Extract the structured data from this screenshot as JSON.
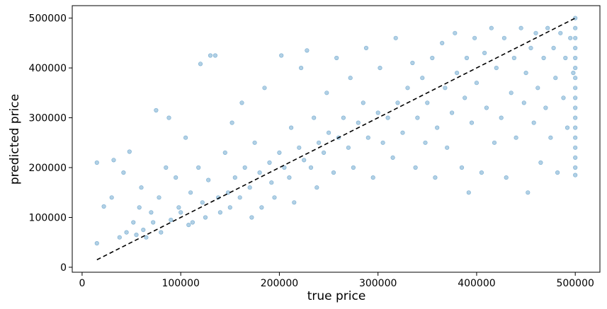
{
  "chart_data": {
    "type": "scatter",
    "title": "",
    "xlabel": "true price",
    "ylabel": "predicted price",
    "xlim": [
      -10000,
      525000
    ],
    "ylim": [
      -10000,
      525000
    ],
    "xticks": [
      0,
      100000,
      200000,
      300000,
      400000,
      500000
    ],
    "yticks": [
      0,
      100000,
      200000,
      300000,
      400000,
      500000
    ],
    "grid": false,
    "point_color": "#1f77b4",
    "point_alpha": 0.35,
    "reference_line": {
      "style": "dashed",
      "color": "#000000",
      "x": [
        15000,
        500000
      ],
      "y": [
        15000,
        500000
      ]
    },
    "series": [
      {
        "points": [
          [
            15000,
            48000
          ],
          [
            15000,
            210000
          ],
          [
            22000,
            122000
          ],
          [
            30000,
            140000
          ],
          [
            32000,
            215000
          ],
          [
            38000,
            60000
          ],
          [
            42000,
            190000
          ],
          [
            48000,
            232000
          ],
          [
            45000,
            70000
          ],
          [
            52000,
            90000
          ],
          [
            55000,
            65000
          ],
          [
            58000,
            120000
          ],
          [
            60000,
            160000
          ],
          [
            62000,
            75000
          ],
          [
            65000,
            60000
          ],
          [
            70000,
            110000
          ],
          [
            72000,
            90000
          ],
          [
            75000,
            315000
          ],
          [
            78000,
            140000
          ],
          [
            80000,
            70000
          ],
          [
            85000,
            200000
          ],
          [
            88000,
            300000
          ],
          [
            90000,
            95000
          ],
          [
            95000,
            180000
          ],
          [
            98000,
            120000
          ],
          [
            100000,
            110000
          ],
          [
            105000,
            260000
          ],
          [
            108000,
            85000
          ],
          [
            110000,
            150000
          ],
          [
            112000,
            90000
          ],
          [
            118000,
            200000
          ],
          [
            120000,
            408000
          ],
          [
            122000,
            130000
          ],
          [
            125000,
            100000
          ],
          [
            128000,
            175000
          ],
          [
            130000,
            425000
          ],
          [
            135000,
            425000
          ],
          [
            138000,
            140000
          ],
          [
            140000,
            110000
          ],
          [
            145000,
            230000
          ],
          [
            148000,
            150000
          ],
          [
            150000,
            120000
          ],
          [
            152000,
            290000
          ],
          [
            155000,
            180000
          ],
          [
            160000,
            140000
          ],
          [
            162000,
            330000
          ],
          [
            165000,
            200000
          ],
          [
            170000,
            160000
          ],
          [
            172000,
            100000
          ],
          [
            175000,
            250000
          ],
          [
            180000,
            190000
          ],
          [
            182000,
            120000
          ],
          [
            185000,
            360000
          ],
          [
            190000,
            210000
          ],
          [
            192000,
            170000
          ],
          [
            195000,
            140000
          ],
          [
            200000,
            230000
          ],
          [
            202000,
            425000
          ],
          [
            205000,
            200000
          ],
          [
            210000,
            180000
          ],
          [
            212000,
            280000
          ],
          [
            215000,
            130000
          ],
          [
            220000,
            240000
          ],
          [
            222000,
            400000
          ],
          [
            225000,
            215000
          ],
          [
            228000,
            435000
          ],
          [
            232000,
            200000
          ],
          [
            235000,
            300000
          ],
          [
            238000,
            160000
          ],
          [
            240000,
            250000
          ],
          [
            245000,
            230000
          ],
          [
            248000,
            350000
          ],
          [
            250000,
            270000
          ],
          [
            255000,
            190000
          ],
          [
            258000,
            420000
          ],
          [
            260000,
            260000
          ],
          [
            265000,
            300000
          ],
          [
            270000,
            240000
          ],
          [
            272000,
            380000
          ],
          [
            275000,
            200000
          ],
          [
            280000,
            290000
          ],
          [
            285000,
            330000
          ],
          [
            288000,
            440000
          ],
          [
            290000,
            260000
          ],
          [
            295000,
            180000
          ],
          [
            300000,
            310000
          ],
          [
            302000,
            400000
          ],
          [
            305000,
            250000
          ],
          [
            310000,
            300000
          ],
          [
            315000,
            220000
          ],
          [
            318000,
            460000
          ],
          [
            320000,
            330000
          ],
          [
            325000,
            270000
          ],
          [
            330000,
            360000
          ],
          [
            335000,
            410000
          ],
          [
            338000,
            200000
          ],
          [
            340000,
            300000
          ],
          [
            345000,
            380000
          ],
          [
            348000,
            250000
          ],
          [
            350000,
            330000
          ],
          [
            355000,
            420000
          ],
          [
            358000,
            180000
          ],
          [
            360000,
            280000
          ],
          [
            365000,
            450000
          ],
          [
            368000,
            360000
          ],
          [
            370000,
            240000
          ],
          [
            375000,
            310000
          ],
          [
            378000,
            470000
          ],
          [
            380000,
            390000
          ],
          [
            385000,
            200000
          ],
          [
            388000,
            340000
          ],
          [
            390000,
            420000
          ],
          [
            392000,
            150000
          ],
          [
            395000,
            290000
          ],
          [
            398000,
            460000
          ],
          [
            400000,
            370000
          ],
          [
            405000,
            190000
          ],
          [
            408000,
            430000
          ],
          [
            410000,
            320000
          ],
          [
            415000,
            480000
          ],
          [
            418000,
            250000
          ],
          [
            420000,
            400000
          ],
          [
            425000,
            300000
          ],
          [
            428000,
            460000
          ],
          [
            430000,
            180000
          ],
          [
            435000,
            350000
          ],
          [
            438000,
            420000
          ],
          [
            440000,
            260000
          ],
          [
            445000,
            480000
          ],
          [
            448000,
            330000
          ],
          [
            450000,
            390000
          ],
          [
            452000,
            150000
          ],
          [
            455000,
            440000
          ],
          [
            458000,
            290000
          ],
          [
            460000,
            470000
          ],
          [
            462000,
            360000
          ],
          [
            465000,
            210000
          ],
          [
            468000,
            420000
          ],
          [
            470000,
            320000
          ],
          [
            472000,
            480000
          ],
          [
            475000,
            260000
          ],
          [
            478000,
            440000
          ],
          [
            480000,
            380000
          ],
          [
            482000,
            190000
          ],
          [
            485000,
            470000
          ],
          [
            488000,
            340000
          ],
          [
            490000,
            420000
          ],
          [
            492000,
            280000
          ],
          [
            495000,
            460000
          ],
          [
            498000,
            390000
          ],
          [
            500000,
            500000
          ],
          [
            500000,
            480000
          ],
          [
            500000,
            460000
          ],
          [
            500000,
            440000
          ],
          [
            500000,
            420000
          ],
          [
            500000,
            400000
          ],
          [
            500000,
            380000
          ],
          [
            500000,
            360000
          ],
          [
            500000,
            340000
          ],
          [
            500000,
            320000
          ],
          [
            500000,
            300000
          ],
          [
            500000,
            280000
          ],
          [
            500000,
            260000
          ],
          [
            500000,
            240000
          ],
          [
            500000,
            220000
          ],
          [
            500000,
            200000
          ],
          [
            500000,
            185000
          ]
        ]
      }
    ]
  }
}
